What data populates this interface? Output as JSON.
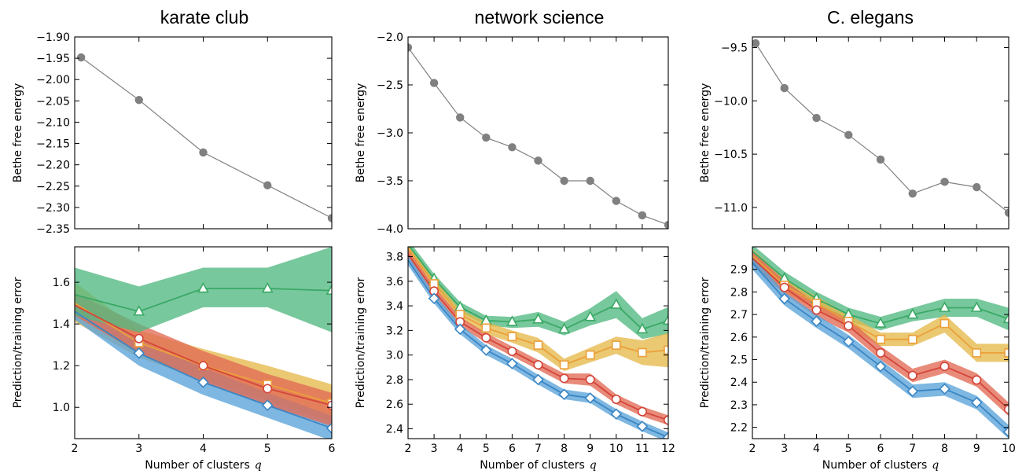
{
  "colors": {
    "gray": "#808080",
    "blue": "#3a86c4",
    "red": "#d4453a",
    "orange": "#eba03a",
    "green": "#3aa965",
    "blue_band": "#5aa3d8",
    "red_band": "#e16a55",
    "orange_band": "#e6b94a",
    "green_band": "#52b882"
  },
  "chart_data": [
    {
      "type": "line",
      "title": "karate club",
      "xlabel": "",
      "ylabel": "Bethe free energy",
      "xlim": [
        2,
        6
      ],
      "ylim": [
        -2.35,
        -1.9
      ],
      "yticks": [
        -1.9,
        -1.95,
        -2.0,
        -2.05,
        -2.1,
        -2.15,
        -2.2,
        -2.25,
        -2.3,
        -2.35
      ],
      "ytick_labels": [
        "−1.90",
        "−1.95",
        "−2.00",
        "−2.05",
        "−2.10",
        "−2.15",
        "−2.20",
        "−2.25",
        "−2.30",
        "−2.35"
      ],
      "xticks": [
        2,
        3,
        4,
        5,
        6
      ],
      "show_xtick_labels": false,
      "series": [
        {
          "color": "gray",
          "marker": "circle",
          "x": [
            2.1,
            3,
            4,
            5,
            6
          ],
          "y": [
            -1.948,
            -2.048,
            -2.171,
            -2.248,
            -2.325
          ]
        }
      ]
    },
    {
      "type": "line",
      "title": "network science",
      "xlabel": "",
      "ylabel": "Bethe free energy",
      "xlim": [
        2,
        12
      ],
      "ylim": [
        -4.0,
        -2.0
      ],
      "yticks": [
        -2.0,
        -2.5,
        -3.0,
        -3.5,
        -4.0
      ],
      "ytick_labels": [
        "−2.0",
        "−2.5",
        "−3.0",
        "−3.5",
        "−4.0"
      ],
      "xticks": [
        2,
        3,
        4,
        5,
        6,
        7,
        8,
        9,
        10,
        11,
        12
      ],
      "show_xtick_labels": false,
      "series": [
        {
          "color": "gray",
          "marker": "circle",
          "x": [
            2,
            3,
            4,
            5,
            6,
            7,
            8,
            9,
            10,
            11,
            12
          ],
          "y": [
            -2.11,
            -2.48,
            -2.84,
            -3.05,
            -3.15,
            -3.29,
            -3.5,
            -3.5,
            -3.71,
            -3.86,
            -3.96
          ]
        }
      ]
    },
    {
      "type": "line",
      "title": "C. elegans",
      "xlabel": "",
      "ylabel": "Bethe free energy",
      "xlim": [
        2,
        10
      ],
      "ylim": [
        -11.2,
        -9.4
      ],
      "yticks": [
        -9.5,
        -10.0,
        -10.5,
        -11.0
      ],
      "ytick_labels": [
        "−9.5",
        "−10.0",
        "−10.5",
        "−11.0"
      ],
      "xticks": [
        2,
        3,
        4,
        5,
        6,
        7,
        8,
        9,
        10
      ],
      "show_xtick_labels": false,
      "series": [
        {
          "color": "gray",
          "marker": "circle",
          "x": [
            2.1,
            3,
            4,
            5,
            6,
            7,
            8,
            9,
            10
          ],
          "y": [
            -9.46,
            -9.88,
            -10.16,
            -10.32,
            -10.55,
            -10.87,
            -10.76,
            -10.81,
            -11.05
          ]
        }
      ]
    },
    {
      "type": "area",
      "title": "",
      "xlabel": "Number of clusters",
      "xlabel_var": "q",
      "ylabel": "Prediction/training error",
      "xlim": [
        2,
        6
      ],
      "ylim": [
        0.85,
        1.77
      ],
      "yticks": [
        1.0,
        1.2,
        1.4,
        1.6
      ],
      "ytick_labels": [
        "1.0",
        "1.2",
        "1.4",
        "1.6"
      ],
      "xticks": [
        2,
        3,
        4,
        5,
        6
      ],
      "xtick_labels": [
        "2",
        "3",
        "4",
        "5",
        "6"
      ],
      "show_xtick_labels": true,
      "series": [
        {
          "color": "orange",
          "band": "orange_band",
          "marker": "square",
          "x": [
            2,
            3,
            4,
            5,
            6
          ],
          "y": [
            1.5,
            1.31,
            1.2,
            1.11,
            1.02
          ],
          "lo": [
            1.41,
            1.24,
            1.13,
            1.03,
            0.93
          ],
          "hi": [
            1.6,
            1.37,
            1.28,
            1.2,
            1.11
          ]
        },
        {
          "color": "blue",
          "band": "blue_band",
          "marker": "diamond",
          "x": [
            2,
            3,
            4,
            5,
            6
          ],
          "y": [
            1.46,
            1.26,
            1.12,
            1.01,
            0.9
          ],
          "lo": [
            1.42,
            1.2,
            1.06,
            0.95,
            0.84
          ],
          "hi": [
            1.51,
            1.32,
            1.19,
            1.07,
            0.96
          ]
        },
        {
          "color": "red",
          "band": "red_band",
          "marker": "circle",
          "x": [
            2,
            3,
            4,
            5,
            6
          ],
          "y": [
            1.49,
            1.33,
            1.2,
            1.09,
            1.01
          ],
          "lo": [
            1.44,
            1.26,
            1.12,
            1.01,
            0.91
          ],
          "hi": [
            1.55,
            1.4,
            1.27,
            1.16,
            1.07
          ]
        },
        {
          "color": "green",
          "band": "green_band",
          "marker": "triangle",
          "x": [
            2,
            3,
            4,
            5,
            6
          ],
          "y": [
            1.54,
            1.46,
            1.57,
            1.57,
            1.56
          ],
          "lo": [
            1.44,
            1.36,
            1.48,
            1.48,
            1.36
          ],
          "hi": [
            1.67,
            1.58,
            1.67,
            1.67,
            1.77
          ]
        }
      ]
    },
    {
      "type": "area",
      "title": "",
      "xlabel": "Number of clusters",
      "xlabel_var": "q",
      "ylabel": "Prediction/training error",
      "xlim": [
        2,
        12
      ],
      "ylim": [
        2.32,
        3.88
      ],
      "yticks": [
        2.4,
        2.6,
        2.8,
        3.0,
        3.2,
        3.4,
        3.6,
        3.8
      ],
      "ytick_labels": [
        "2.4",
        "2.6",
        "2.8",
        "3.0",
        "3.2",
        "3.4",
        "3.6",
        "3.8"
      ],
      "xticks": [
        2,
        3,
        4,
        5,
        6,
        7,
        8,
        9,
        10,
        11,
        12
      ],
      "xtick_labels": [
        "2",
        "3",
        "4",
        "5",
        "6",
        "7",
        "8",
        "9",
        "10",
        "11",
        "12"
      ],
      "show_xtick_labels": true,
      "series": [
        {
          "color": "green",
          "band": "green_band",
          "marker": "triangle",
          "x": [
            2,
            3,
            4,
            5,
            6,
            7,
            8,
            9,
            10,
            11,
            12
          ],
          "y": [
            3.9,
            3.62,
            3.39,
            3.28,
            3.27,
            3.29,
            3.21,
            3.31,
            3.41,
            3.21,
            3.28
          ],
          "lo": [
            3.86,
            3.58,
            3.35,
            3.24,
            3.22,
            3.23,
            3.16,
            3.24,
            3.3,
            3.13,
            3.17
          ],
          "hi": [
            3.94,
            3.66,
            3.43,
            3.32,
            3.31,
            3.35,
            3.27,
            3.38,
            3.52,
            3.3,
            3.39
          ]
        },
        {
          "color": "orange",
          "band": "orange_band",
          "marker": "square",
          "x": [
            2,
            3,
            4,
            5,
            6,
            7,
            8,
            9,
            10,
            11,
            12
          ],
          "y": [
            3.87,
            3.58,
            3.33,
            3.22,
            3.15,
            3.08,
            2.92,
            3.0,
            3.08,
            3.02,
            3.04
          ],
          "lo": [
            3.83,
            3.54,
            3.29,
            3.17,
            3.1,
            3.02,
            2.87,
            2.94,
            3.01,
            2.92,
            2.9
          ],
          "hi": [
            3.91,
            3.62,
            3.37,
            3.27,
            3.2,
            3.14,
            2.97,
            3.06,
            3.15,
            3.12,
            3.18
          ]
        },
        {
          "color": "red",
          "band": "red_band",
          "marker": "circle",
          "x": [
            2,
            3,
            4,
            5,
            6,
            7,
            8,
            9,
            10,
            11,
            12
          ],
          "y": [
            3.82,
            3.52,
            3.27,
            3.14,
            3.03,
            2.92,
            2.81,
            2.8,
            2.64,
            2.54,
            2.47
          ],
          "lo": [
            3.78,
            3.48,
            3.23,
            3.1,
            2.99,
            2.88,
            2.77,
            2.75,
            2.6,
            2.5,
            2.43
          ],
          "hi": [
            3.86,
            3.56,
            3.31,
            3.18,
            3.07,
            2.96,
            2.85,
            2.85,
            2.68,
            2.58,
            2.51
          ]
        },
        {
          "color": "blue",
          "band": "blue_band",
          "marker": "diamond",
          "x": [
            2,
            3,
            4,
            5,
            6,
            7,
            8,
            9,
            10,
            11,
            12
          ],
          "y": [
            3.77,
            3.46,
            3.21,
            3.04,
            2.93,
            2.8,
            2.68,
            2.65,
            2.52,
            2.42,
            2.33
          ],
          "lo": [
            3.73,
            3.42,
            3.17,
            3.0,
            2.89,
            2.76,
            2.64,
            2.61,
            2.48,
            2.38,
            2.29
          ],
          "hi": [
            3.81,
            3.5,
            3.25,
            3.08,
            2.97,
            2.84,
            2.72,
            2.69,
            2.56,
            2.46,
            2.37
          ]
        }
      ]
    },
    {
      "type": "area",
      "title": "",
      "xlabel": "Number of clusters",
      "xlabel_var": "q",
      "ylabel": "Prediction/training error",
      "xlim": [
        2,
        10
      ],
      "ylim": [
        2.15,
        3.0
      ],
      "yticks": [
        2.2,
        2.3,
        2.4,
        2.5,
        2.6,
        2.7,
        2.8,
        2.9
      ],
      "ytick_labels": [
        "2.2",
        "2.3",
        "2.4",
        "2.5",
        "2.6",
        "2.7",
        "2.8",
        "2.9"
      ],
      "xticks": [
        2,
        3,
        4,
        5,
        6,
        7,
        8,
        9,
        10
      ],
      "xtick_labels": [
        "2",
        "3",
        "4",
        "5",
        "6",
        "7",
        "8",
        "9",
        "10"
      ],
      "show_xtick_labels": true,
      "series": [
        {
          "color": "green",
          "band": "green_band",
          "marker": "triangle",
          "x": [
            2,
            3,
            4,
            5,
            6,
            7,
            8,
            9,
            10
          ],
          "y": [
            2.98,
            2.86,
            2.77,
            2.7,
            2.66,
            2.7,
            2.73,
            2.73,
            2.68
          ],
          "lo": [
            2.95,
            2.83,
            2.74,
            2.67,
            2.63,
            2.67,
            2.69,
            2.69,
            2.63
          ],
          "hi": [
            3.01,
            2.89,
            2.8,
            2.73,
            2.69,
            2.73,
            2.77,
            2.77,
            2.73
          ]
        },
        {
          "color": "orange",
          "band": "orange_band",
          "marker": "square",
          "x": [
            2,
            3,
            4,
            5,
            6,
            7,
            8,
            9,
            10
          ],
          "y": [
            2.96,
            2.83,
            2.75,
            2.67,
            2.59,
            2.59,
            2.66,
            2.53,
            2.53
          ],
          "lo": [
            2.93,
            2.8,
            2.72,
            2.64,
            2.56,
            2.56,
            2.62,
            2.49,
            2.49
          ],
          "hi": [
            2.99,
            2.86,
            2.78,
            2.7,
            2.62,
            2.62,
            2.7,
            2.57,
            2.57
          ]
        },
        {
          "color": "red",
          "band": "red_band",
          "marker": "circle",
          "x": [
            2,
            3,
            4,
            5,
            6,
            7,
            8,
            9,
            10
          ],
          "y": [
            2.95,
            2.82,
            2.72,
            2.65,
            2.53,
            2.43,
            2.47,
            2.41,
            2.28
          ],
          "lo": [
            2.92,
            2.79,
            2.69,
            2.62,
            2.5,
            2.4,
            2.44,
            2.38,
            2.25
          ],
          "hi": [
            2.98,
            2.85,
            2.75,
            2.68,
            2.56,
            2.46,
            2.5,
            2.44,
            2.31
          ]
        },
        {
          "color": "blue",
          "band": "blue_band",
          "marker": "diamond",
          "x": [
            2,
            3,
            4,
            5,
            6,
            7,
            8,
            9,
            10
          ],
          "y": [
            2.93,
            2.77,
            2.67,
            2.58,
            2.47,
            2.36,
            2.37,
            2.31,
            2.18
          ],
          "lo": [
            2.9,
            2.74,
            2.64,
            2.55,
            2.44,
            2.33,
            2.34,
            2.28,
            2.15
          ],
          "hi": [
            2.96,
            2.8,
            2.7,
            2.61,
            2.5,
            2.39,
            2.4,
            2.34,
            2.21
          ]
        }
      ]
    }
  ]
}
